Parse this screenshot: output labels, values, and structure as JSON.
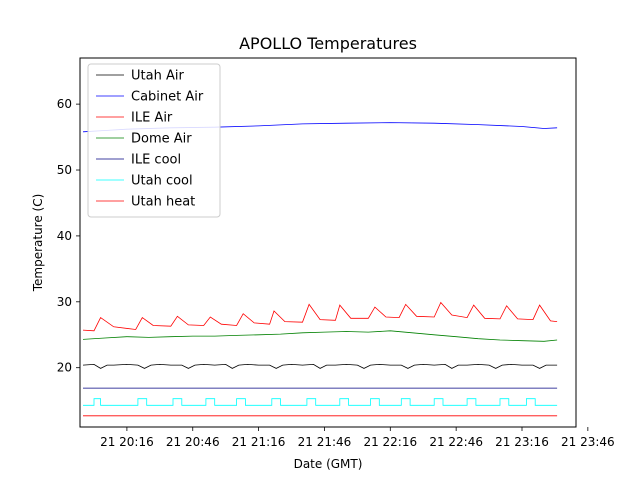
{
  "chart_data": {
    "type": "line",
    "title": "APOLLO Temperatures",
    "xlabel": "Date (GMT)",
    "ylabel": "Temperature (C)",
    "xlim": [
      0,
      216
    ],
    "ylim": [
      11,
      67
    ],
    "grid": false,
    "legend_position": "top-left",
    "x_unit": "minutes since 19:56 GMT",
    "xticks": [
      {
        "x": 20,
        "label": "21 20:16"
      },
      {
        "x": 50,
        "label": "21 20:46"
      },
      {
        "x": 80,
        "label": "21 21:16"
      },
      {
        "x": 110,
        "label": "21 21:46"
      },
      {
        "x": 140,
        "label": "21 22:16"
      },
      {
        "x": 170,
        "label": "21 22:46"
      },
      {
        "x": 200,
        "label": "21 23:16"
      },
      {
        "x": 230,
        "label": "21 23:46"
      }
    ],
    "yticks": [
      20,
      30,
      40,
      50,
      60
    ],
    "series": [
      {
        "name": "Utah Air",
        "color": "#000000",
        "x": [
          0,
          5,
          8,
          11,
          14,
          20,
          25,
          28,
          31,
          35,
          40,
          45,
          48,
          51,
          55,
          60,
          65,
          68,
          71,
          75,
          80,
          85,
          88,
          91,
          95,
          100,
          105,
          108,
          111,
          115,
          120,
          125,
          128,
          131,
          135,
          140,
          145,
          148,
          151,
          155,
          160,
          165,
          168,
          171,
          175,
          180,
          185,
          188,
          191,
          195,
          200,
          205,
          208,
          211,
          216
        ],
        "values": [
          20.4,
          20.5,
          19.9,
          20.4,
          20.4,
          20.5,
          20.4,
          19.9,
          20.4,
          20.5,
          20.4,
          20.4,
          19.9,
          20.4,
          20.5,
          20.4,
          20.5,
          19.9,
          20.4,
          20.5,
          20.4,
          20.4,
          19.9,
          20.4,
          20.5,
          20.4,
          20.5,
          19.9,
          20.4,
          20.4,
          20.5,
          20.4,
          19.9,
          20.4,
          20.5,
          20.4,
          20.4,
          19.9,
          20.4,
          20.5,
          20.4,
          20.5,
          19.9,
          20.4,
          20.4,
          20.5,
          20.4,
          19.9,
          20.4,
          20.5,
          20.4,
          20.4,
          19.9,
          20.4,
          20.4
        ]
      },
      {
        "name": "Cabinet Air",
        "color": "#0000ff",
        "x": [
          0,
          10,
          20,
          40,
          60,
          80,
          100,
          120,
          140,
          160,
          180,
          200,
          210,
          216
        ],
        "values": [
          55.8,
          56.0,
          56.2,
          56.4,
          56.5,
          56.7,
          57.0,
          57.1,
          57.2,
          57.1,
          56.9,
          56.6,
          56.3,
          56.4
        ]
      },
      {
        "name": "ILE Air",
        "color": "#ff0000",
        "x": [
          0,
          5,
          8,
          14,
          24,
          27,
          32,
          40,
          43,
          48,
          55,
          58,
          63,
          70,
          73,
          78,
          85,
          87,
          92,
          100,
          103,
          108,
          115,
          117,
          122,
          130,
          133,
          138,
          144,
          147,
          152,
          160,
          163,
          168,
          175,
          178,
          183,
          190,
          193,
          198,
          205,
          208,
          213,
          216
        ],
        "values": [
          25.7,
          25.6,
          27.6,
          26.2,
          25.8,
          27.6,
          26.4,
          26.3,
          27.8,
          26.5,
          26.4,
          27.7,
          26.6,
          26.4,
          28.2,
          26.8,
          26.6,
          28.6,
          27.0,
          26.9,
          29.6,
          27.3,
          27.2,
          29.5,
          27.5,
          27.5,
          29.2,
          27.7,
          27.6,
          29.6,
          27.8,
          27.7,
          29.9,
          28.0,
          27.6,
          29.5,
          27.5,
          27.4,
          29.4,
          27.4,
          27.3,
          29.5,
          27.1,
          27.0
        ]
      },
      {
        "name": "Dome Air",
        "color": "#008000",
        "x": [
          0,
          10,
          20,
          30,
          40,
          50,
          60,
          70,
          80,
          90,
          100,
          110,
          120,
          130,
          140,
          150,
          160,
          170,
          180,
          190,
          200,
          210,
          216
        ],
        "values": [
          24.3,
          24.5,
          24.7,
          24.6,
          24.7,
          24.8,
          24.8,
          24.9,
          25.0,
          25.1,
          25.3,
          25.4,
          25.5,
          25.4,
          25.6,
          25.3,
          25.0,
          24.7,
          24.4,
          24.2,
          24.1,
          24.0,
          24.2
        ]
      },
      {
        "name": "ILE cool",
        "color": "#000080",
        "x": [
          0,
          216
        ],
        "values": [
          16.9,
          16.9
        ]
      },
      {
        "name": "Utah cool",
        "color": "#00ffff",
        "x": [
          0,
          5,
          5,
          8,
          8,
          25,
          25,
          29,
          29,
          41,
          41,
          45,
          45,
          56,
          56,
          60,
          60,
          70,
          70,
          74,
          74,
          86,
          86,
          90,
          90,
          102,
          102,
          106,
          106,
          117,
          117,
          121,
          121,
          131,
          131,
          135,
          135,
          145,
          145,
          149,
          149,
          160,
          160,
          164,
          164,
          175,
          175,
          179,
          179,
          190,
          190,
          194,
          194,
          202,
          202,
          206,
          206,
          216
        ],
        "values": [
          14.3,
          14.3,
          15.3,
          15.3,
          14.3,
          14.3,
          15.3,
          15.3,
          14.3,
          14.3,
          15.3,
          15.3,
          14.3,
          14.3,
          15.3,
          15.3,
          14.3,
          14.3,
          15.3,
          15.3,
          14.3,
          14.3,
          15.3,
          15.3,
          14.3,
          14.3,
          15.3,
          15.3,
          14.3,
          14.3,
          15.3,
          15.3,
          14.3,
          14.3,
          15.3,
          15.3,
          14.3,
          14.3,
          15.3,
          15.3,
          14.3,
          14.3,
          15.3,
          15.3,
          14.3,
          14.3,
          15.3,
          15.3,
          14.3,
          14.3,
          15.3,
          15.3,
          14.3,
          14.3,
          15.3,
          15.3,
          14.3,
          14.3
        ]
      },
      {
        "name": "Utah heat",
        "color": "#ff0000",
        "x": [
          0,
          216
        ],
        "values": [
          12.7,
          12.7
        ]
      }
    ]
  }
}
